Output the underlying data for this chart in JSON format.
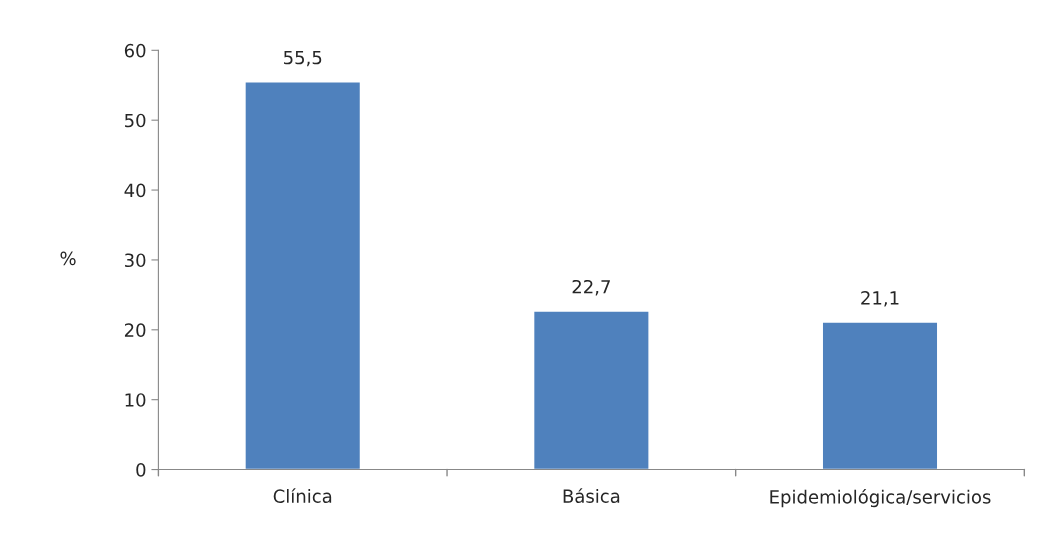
{
  "chart_data": {
    "type": "bar",
    "ylabel": "%",
    "categories": [
      "Clínica",
      "Básica",
      "Epidemiológica/servicios"
    ],
    "values": [
      55.5,
      22.7,
      21.1
    ],
    "value_labels": [
      "55,5",
      "22,7",
      "21,1"
    ],
    "color": "#4f81bd",
    "ylim": [
      0,
      60
    ],
    "yticks": [
      0,
      10,
      20,
      30,
      40,
      50,
      60
    ]
  }
}
